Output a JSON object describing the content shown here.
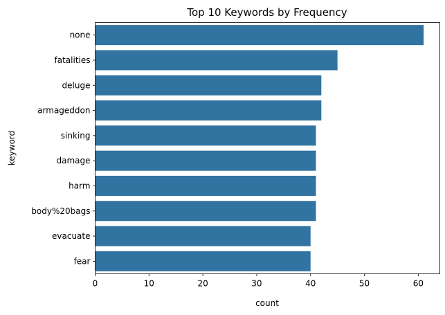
{
  "chart_data": {
    "type": "bar",
    "orientation": "horizontal",
    "title": "Top 10 Keywords by Frequency",
    "xlabel": "count",
    "ylabel": "keyword",
    "categories": [
      "none",
      "fatalities",
      "deluge",
      "armageddon",
      "sinking",
      "damage",
      "harm",
      "body%20bags",
      "evacuate",
      "fear"
    ],
    "values": [
      61,
      45,
      42,
      42,
      41,
      41,
      41,
      41,
      40,
      40
    ],
    "xlim": [
      0,
      64
    ],
    "xticks": [
      0,
      10,
      20,
      30,
      40,
      50,
      60
    ],
    "grid": false,
    "legend": "none",
    "bar_color": "#3274a1"
  }
}
